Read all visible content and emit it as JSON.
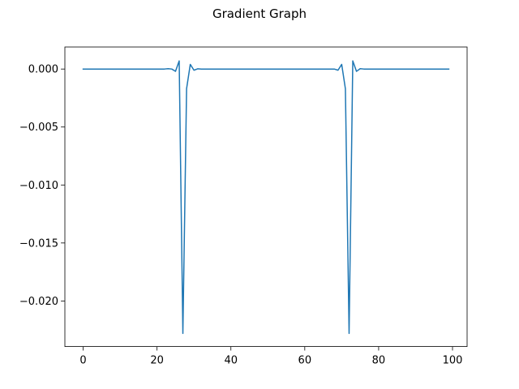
{
  "chart_data": {
    "type": "line",
    "title": "Gradient Graph",
    "xlabel": "",
    "ylabel": "",
    "xlim": [
      -4.95,
      103.95
    ],
    "ylim": [
      -0.02393,
      0.0019
    ],
    "xticks": [
      0,
      20,
      40,
      60,
      80,
      100
    ],
    "xtick_labels": [
      "0",
      "20",
      "40",
      "60",
      "80",
      "100"
    ],
    "yticks": [
      0.0,
      -0.005,
      -0.01,
      -0.015,
      -0.02
    ],
    "ytick_labels": [
      "0.000",
      "−0.005",
      "−0.010",
      "−0.015",
      "−0.020"
    ],
    "grid": false,
    "line_color": "#1f77b4",
    "series": [
      {
        "x": [
          0,
          1,
          2,
          3,
          4,
          5,
          6,
          7,
          8,
          9,
          10,
          11,
          12,
          13,
          14,
          15,
          16,
          17,
          18,
          19,
          20,
          21,
          22,
          23,
          24,
          25,
          26,
          27,
          28,
          29,
          30,
          31,
          32,
          33,
          34,
          35,
          36,
          37,
          38,
          39,
          40,
          41,
          42,
          43,
          44,
          45,
          46,
          47,
          48,
          49,
          50,
          51,
          52,
          53,
          54,
          55,
          56,
          57,
          58,
          59,
          60,
          61,
          62,
          63,
          64,
          65,
          66,
          67,
          68,
          69,
          70,
          71,
          72,
          73,
          74,
          75,
          76,
          77,
          78,
          79,
          80,
          81,
          82,
          83,
          84,
          85,
          86,
          87,
          88,
          89,
          90,
          91,
          92,
          93,
          94,
          95,
          96,
          97,
          98,
          99
        ],
        "y": [
          0,
          0,
          0,
          0,
          0,
          0,
          0,
          0,
          0,
          0,
          0,
          0,
          0,
          0,
          0,
          0,
          0,
          0,
          0,
          0,
          0,
          0,
          0,
          3e-05,
          0,
          -0.0002,
          0.0007,
          -0.0228,
          -0.0017,
          0.0004,
          -0.0001,
          2e-05,
          0,
          0,
          0,
          0,
          0,
          0,
          0,
          0,
          0,
          0,
          0,
          0,
          0,
          0,
          0,
          0,
          0,
          0,
          0,
          0,
          0,
          0,
          0,
          0,
          0,
          0,
          0,
          0,
          0,
          0,
          0,
          0,
          0,
          0,
          0,
          0,
          0,
          -0.0001,
          0.0004,
          -0.0017,
          -0.0228,
          0.0007,
          -0.0002,
          3e-05,
          0,
          0,
          0,
          0,
          0,
          0,
          0,
          0,
          0,
          0,
          0,
          0,
          0,
          0,
          0,
          0,
          0,
          0,
          0,
          0,
          0,
          0,
          0,
          0
        ]
      }
    ]
  }
}
